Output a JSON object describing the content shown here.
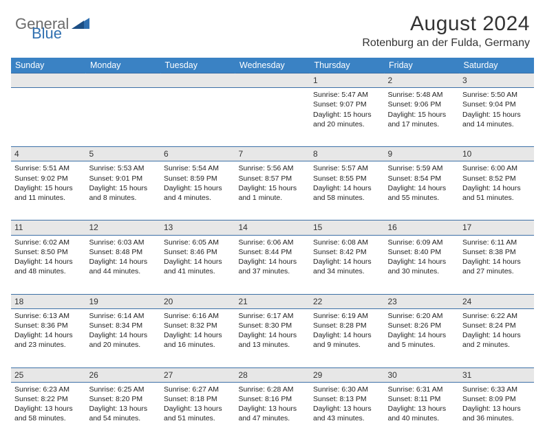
{
  "brand": {
    "general": "General",
    "blue": "Blue"
  },
  "title": "August 2024",
  "location": "Rotenburg an der Fulda, Germany",
  "colors": {
    "header_bg": "#3a82c4",
    "header_text": "#ffffff",
    "daynum_bg": "#e7e7e7",
    "border": "#3a6ea5",
    "logo_gray": "#6b6b6b",
    "logo_blue": "#2f6fb0"
  },
  "weekdays": [
    "Sunday",
    "Monday",
    "Tuesday",
    "Wednesday",
    "Thursday",
    "Friday",
    "Saturday"
  ],
  "weeks": [
    {
      "nums": [
        "",
        "",
        "",
        "",
        "1",
        "2",
        "3"
      ],
      "cells": [
        {
          "lines": []
        },
        {
          "lines": []
        },
        {
          "lines": []
        },
        {
          "lines": []
        },
        {
          "lines": [
            "Sunrise: 5:47 AM",
            "Sunset: 9:07 PM",
            "Daylight: 15 hours",
            "and 20 minutes."
          ]
        },
        {
          "lines": [
            "Sunrise: 5:48 AM",
            "Sunset: 9:06 PM",
            "Daylight: 15 hours",
            "and 17 minutes."
          ]
        },
        {
          "lines": [
            "Sunrise: 5:50 AM",
            "Sunset: 9:04 PM",
            "Daylight: 15 hours",
            "and 14 minutes."
          ]
        }
      ]
    },
    {
      "nums": [
        "4",
        "5",
        "6",
        "7",
        "8",
        "9",
        "10"
      ],
      "cells": [
        {
          "lines": [
            "Sunrise: 5:51 AM",
            "Sunset: 9:02 PM",
            "Daylight: 15 hours",
            "and 11 minutes."
          ]
        },
        {
          "lines": [
            "Sunrise: 5:53 AM",
            "Sunset: 9:01 PM",
            "Daylight: 15 hours",
            "and 8 minutes."
          ]
        },
        {
          "lines": [
            "Sunrise: 5:54 AM",
            "Sunset: 8:59 PM",
            "Daylight: 15 hours",
            "and 4 minutes."
          ]
        },
        {
          "lines": [
            "Sunrise: 5:56 AM",
            "Sunset: 8:57 PM",
            "Daylight: 15 hours",
            "and 1 minute."
          ]
        },
        {
          "lines": [
            "Sunrise: 5:57 AM",
            "Sunset: 8:55 PM",
            "Daylight: 14 hours",
            "and 58 minutes."
          ]
        },
        {
          "lines": [
            "Sunrise: 5:59 AM",
            "Sunset: 8:54 PM",
            "Daylight: 14 hours",
            "and 55 minutes."
          ]
        },
        {
          "lines": [
            "Sunrise: 6:00 AM",
            "Sunset: 8:52 PM",
            "Daylight: 14 hours",
            "and 51 minutes."
          ]
        }
      ]
    },
    {
      "nums": [
        "11",
        "12",
        "13",
        "14",
        "15",
        "16",
        "17"
      ],
      "cells": [
        {
          "lines": [
            "Sunrise: 6:02 AM",
            "Sunset: 8:50 PM",
            "Daylight: 14 hours",
            "and 48 minutes."
          ]
        },
        {
          "lines": [
            "Sunrise: 6:03 AM",
            "Sunset: 8:48 PM",
            "Daylight: 14 hours",
            "and 44 minutes."
          ]
        },
        {
          "lines": [
            "Sunrise: 6:05 AM",
            "Sunset: 8:46 PM",
            "Daylight: 14 hours",
            "and 41 minutes."
          ]
        },
        {
          "lines": [
            "Sunrise: 6:06 AM",
            "Sunset: 8:44 PM",
            "Daylight: 14 hours",
            "and 37 minutes."
          ]
        },
        {
          "lines": [
            "Sunrise: 6:08 AM",
            "Sunset: 8:42 PM",
            "Daylight: 14 hours",
            "and 34 minutes."
          ]
        },
        {
          "lines": [
            "Sunrise: 6:09 AM",
            "Sunset: 8:40 PM",
            "Daylight: 14 hours",
            "and 30 minutes."
          ]
        },
        {
          "lines": [
            "Sunrise: 6:11 AM",
            "Sunset: 8:38 PM",
            "Daylight: 14 hours",
            "and 27 minutes."
          ]
        }
      ]
    },
    {
      "nums": [
        "18",
        "19",
        "20",
        "21",
        "22",
        "23",
        "24"
      ],
      "cells": [
        {
          "lines": [
            "Sunrise: 6:13 AM",
            "Sunset: 8:36 PM",
            "Daylight: 14 hours",
            "and 23 minutes."
          ]
        },
        {
          "lines": [
            "Sunrise: 6:14 AM",
            "Sunset: 8:34 PM",
            "Daylight: 14 hours",
            "and 20 minutes."
          ]
        },
        {
          "lines": [
            "Sunrise: 6:16 AM",
            "Sunset: 8:32 PM",
            "Daylight: 14 hours",
            "and 16 minutes."
          ]
        },
        {
          "lines": [
            "Sunrise: 6:17 AM",
            "Sunset: 8:30 PM",
            "Daylight: 14 hours",
            "and 13 minutes."
          ]
        },
        {
          "lines": [
            "Sunrise: 6:19 AM",
            "Sunset: 8:28 PM",
            "Daylight: 14 hours",
            "and 9 minutes."
          ]
        },
        {
          "lines": [
            "Sunrise: 6:20 AM",
            "Sunset: 8:26 PM",
            "Daylight: 14 hours",
            "and 5 minutes."
          ]
        },
        {
          "lines": [
            "Sunrise: 6:22 AM",
            "Sunset: 8:24 PM",
            "Daylight: 14 hours",
            "and 2 minutes."
          ]
        }
      ]
    },
    {
      "nums": [
        "25",
        "26",
        "27",
        "28",
        "29",
        "30",
        "31"
      ],
      "cells": [
        {
          "lines": [
            "Sunrise: 6:23 AM",
            "Sunset: 8:22 PM",
            "Daylight: 13 hours",
            "and 58 minutes."
          ]
        },
        {
          "lines": [
            "Sunrise: 6:25 AM",
            "Sunset: 8:20 PM",
            "Daylight: 13 hours",
            "and 54 minutes."
          ]
        },
        {
          "lines": [
            "Sunrise: 6:27 AM",
            "Sunset: 8:18 PM",
            "Daylight: 13 hours",
            "and 51 minutes."
          ]
        },
        {
          "lines": [
            "Sunrise: 6:28 AM",
            "Sunset: 8:16 PM",
            "Daylight: 13 hours",
            "and 47 minutes."
          ]
        },
        {
          "lines": [
            "Sunrise: 6:30 AM",
            "Sunset: 8:13 PM",
            "Daylight: 13 hours",
            "and 43 minutes."
          ]
        },
        {
          "lines": [
            "Sunrise: 6:31 AM",
            "Sunset: 8:11 PM",
            "Daylight: 13 hours",
            "and 40 minutes."
          ]
        },
        {
          "lines": [
            "Sunrise: 6:33 AM",
            "Sunset: 8:09 PM",
            "Daylight: 13 hours",
            "and 36 minutes."
          ]
        }
      ]
    }
  ]
}
